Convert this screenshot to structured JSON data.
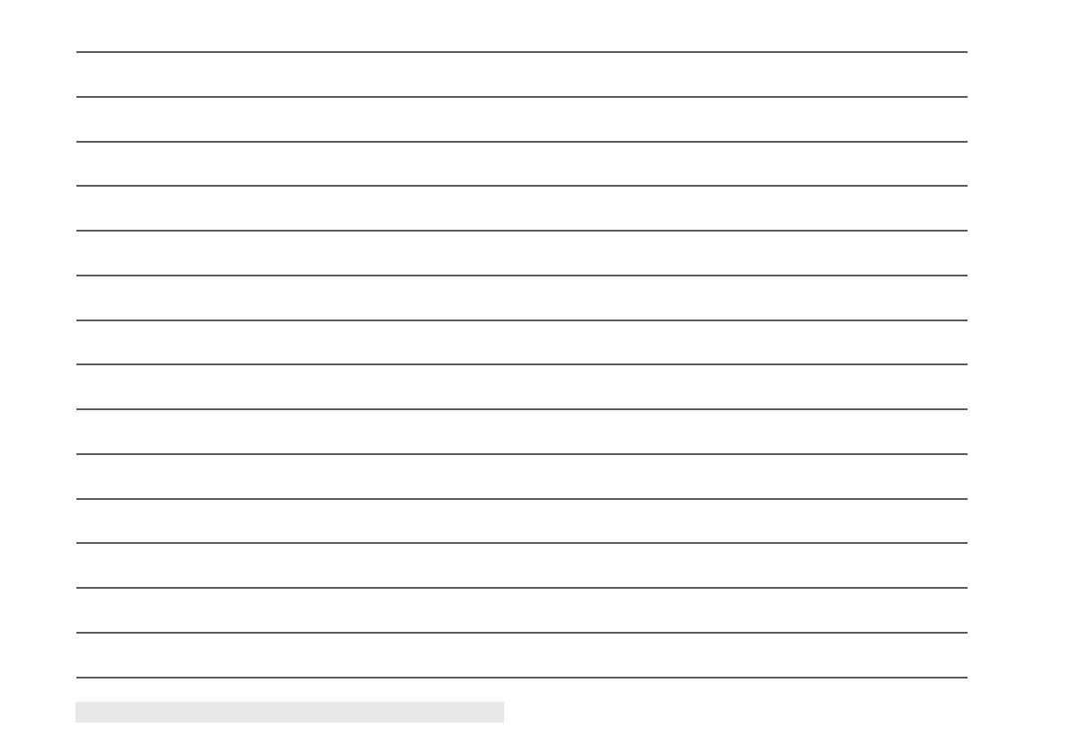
{
  "page": {
    "type": "lined-writing-sheet",
    "rule_count": 15,
    "colors": {
      "rule": "#595959",
      "footer_bar": "#e6e7e8",
      "background": "#ffffff"
    }
  }
}
